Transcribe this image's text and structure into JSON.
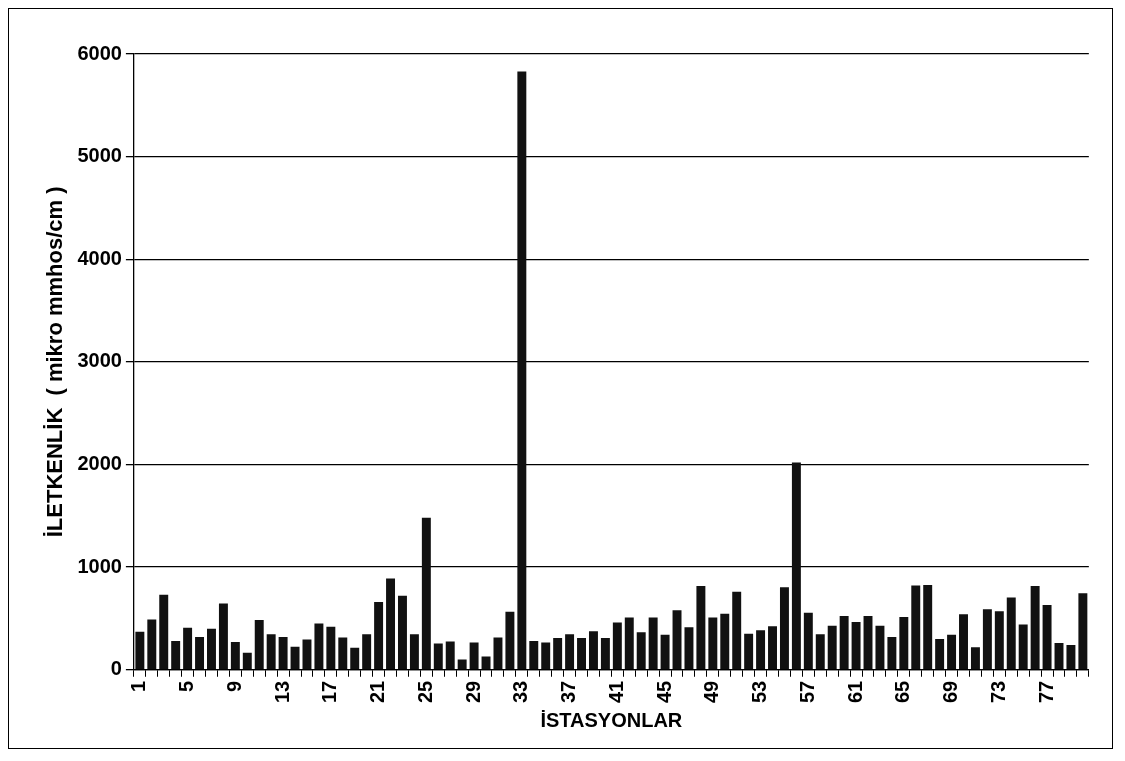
{
  "chart_data": {
    "type": "bar",
    "xlabel": "İSTASYONLAR",
    "ylabel": "İLETKENLİK  ( mikro mmhos/cm )",
    "categories": [
      "1",
      null,
      null,
      null,
      "5",
      null,
      null,
      null,
      "9",
      null,
      null,
      null,
      "13",
      null,
      null,
      null,
      "17",
      null,
      null,
      null,
      "21",
      null,
      null,
      null,
      "25",
      null,
      null,
      null,
      "29",
      null,
      null,
      null,
      "33",
      null,
      null,
      null,
      "37",
      null,
      null,
      null,
      "41",
      null,
      null,
      null,
      "45",
      null,
      null,
      null,
      "49",
      null,
      null,
      null,
      "53",
      null,
      null,
      null,
      "57",
      null,
      null,
      null,
      "61",
      null,
      null,
      null,
      "65",
      null,
      null,
      null,
      "69",
      null,
      null,
      null,
      "73",
      null,
      null,
      null,
      "77",
      null,
      null,
      null
    ],
    "values": [
      370,
      490,
      730,
      280,
      410,
      320,
      400,
      645,
      270,
      165,
      485,
      345,
      320,
      225,
      295,
      450,
      420,
      315,
      215,
      345,
      660,
      890,
      720,
      345,
      1480,
      255,
      275,
      100,
      265,
      130,
      315,
      565,
      5830,
      280,
      265,
      310,
      345,
      310,
      375,
      310,
      460,
      510,
      365,
      510,
      340,
      580,
      415,
      815,
      510,
      545,
      760,
      350,
      385,
      425,
      805,
      2020,
      555,
      345,
      430,
      525,
      465,
      525,
      430,
      320,
      515,
      820,
      825,
      300,
      340,
      540,
      220,
      590,
      570,
      705,
      440,
      815,
      630,
      260,
      240,
      745
    ],
    "color": "#111111",
    "ylim": [
      0,
      6000
    ],
    "yticks": [
      0,
      1000,
      2000,
      3000,
      4000,
      5000,
      6000
    ],
    "grid": "y"
  }
}
